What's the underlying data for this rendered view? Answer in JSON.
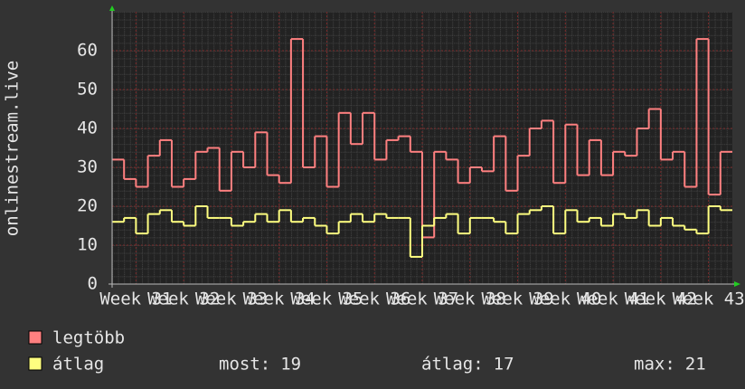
{
  "chart_data": {
    "type": "step",
    "y_label": "onlinestream.live",
    "xlim": [
      30.5,
      43.5
    ],
    "xticks": [
      {
        "value": 31,
        "label": "Week 31"
      },
      {
        "value": 32,
        "label": "Week 32"
      },
      {
        "value": 33,
        "label": "Week 33"
      },
      {
        "value": 34,
        "label": "Week 34"
      },
      {
        "value": 35,
        "label": "Week 35"
      },
      {
        "value": 36,
        "label": "Week 36"
      },
      {
        "value": 37,
        "label": "Week 37"
      },
      {
        "value": 38,
        "label": "Week 38"
      },
      {
        "value": 39,
        "label": "Week 39"
      },
      {
        "value": 40,
        "label": "Week 40"
      },
      {
        "value": 41,
        "label": "Week 41"
      },
      {
        "value": 42,
        "label": "Week 42"
      },
      {
        "value": 43,
        "label": "Week 43"
      }
    ],
    "ylim": [
      0,
      70
    ],
    "yticks": [
      0,
      10,
      20,
      30,
      40,
      50,
      60
    ],
    "grid": true,
    "x": [
      30.5,
      30.75,
      31,
      31.25,
      31.5,
      31.75,
      32,
      32.25,
      32.5,
      32.75,
      33,
      33.25,
      33.5,
      33.75,
      34,
      34.25,
      34.5,
      34.75,
      35,
      35.25,
      35.5,
      35.75,
      36,
      36.25,
      36.5,
      36.75,
      37,
      37.25,
      37.5,
      37.75,
      38,
      38.25,
      38.5,
      38.75,
      39,
      39.25,
      39.5,
      39.75,
      40,
      40.25,
      40.5,
      40.75,
      41,
      41.25,
      41.5,
      41.75,
      42,
      42.25,
      42.5,
      42.75,
      43,
      43.25
    ],
    "series": [
      {
        "name": "legtöbb",
        "color": "#ff8080",
        "values": [
          32,
          27,
          25,
          33,
          37,
          25,
          27,
          34,
          35,
          24,
          34,
          30,
          39,
          28,
          26,
          63,
          30,
          38,
          25,
          44,
          36,
          44,
          32,
          37,
          38,
          34,
          12,
          34,
          32,
          26,
          30,
          29,
          38,
          24,
          33,
          40,
          42,
          26,
          41,
          28,
          37,
          28,
          34,
          33,
          40,
          45,
          32,
          34,
          25,
          63,
          23,
          34
        ]
      },
      {
        "name": "átlag",
        "color": "#ffff80",
        "values": [
          16,
          17,
          13,
          18,
          19,
          16,
          15,
          20,
          17,
          17,
          15,
          16,
          18,
          16,
          19,
          16,
          17,
          15,
          13,
          16,
          18,
          16,
          18,
          17,
          17,
          7,
          15,
          17,
          18,
          13,
          17,
          17,
          16,
          13,
          18,
          19,
          20,
          13,
          19,
          16,
          17,
          15,
          18,
          17,
          19,
          15,
          17,
          15,
          14,
          13,
          20,
          19
        ]
      }
    ],
    "stats": [
      {
        "label": "most:",
        "value": 19
      },
      {
        "label": "átlag:",
        "value": 17
      },
      {
        "label": "max:",
        "value": 21
      }
    ]
  }
}
